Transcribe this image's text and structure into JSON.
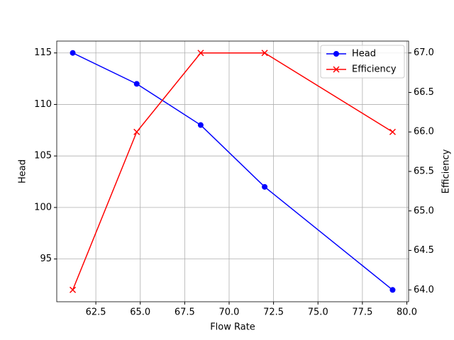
{
  "chart_data": {
    "type": "line",
    "xlabel": "Flow Rate",
    "ylabel": "Head",
    "y2label": "Efficiency",
    "x": [
      61.2,
      64.8,
      68.4,
      72.0,
      79.2
    ],
    "series": [
      {
        "name": "Head",
        "color": "#0000ff",
        "marker": "o",
        "values": [
          115,
          112,
          108,
          102,
          92
        ]
      },
      {
        "name": "Efficiency",
        "color": "#ff0000",
        "marker": "x",
        "axis": "y2",
        "values": [
          64,
          66,
          67,
          67,
          66
        ]
      }
    ],
    "xlim": [
      60.3,
      80.1
    ],
    "xticks": [
      {
        "value": 62.5,
        "label": "62.5"
      },
      {
        "value": 65,
        "label": "65.0"
      },
      {
        "value": 67.5,
        "label": "67.5"
      },
      {
        "value": 70,
        "label": "70.0"
      },
      {
        "value": 72.5,
        "label": "72.5"
      },
      {
        "value": 75,
        "label": "75.0"
      },
      {
        "value": 77.5,
        "label": "77.5"
      },
      {
        "value": 80,
        "label": "80.0"
      }
    ],
    "ylim": [
      90.85,
      116.15
    ],
    "yticks": [
      95,
      100,
      105,
      110,
      115
    ],
    "y2lim": [
      63.85,
      67.15
    ],
    "y2ticks": [
      {
        "value": 64,
        "label": "64.0"
      },
      {
        "value": 64.5,
        "label": "64.5"
      },
      {
        "value": 65,
        "label": "65.0"
      },
      {
        "value": 65.5,
        "label": "65.5"
      },
      {
        "value": 66,
        "label": "66.0"
      },
      {
        "value": 66.5,
        "label": "66.5"
      },
      {
        "value": 67,
        "label": "67.0"
      }
    ],
    "grid": true,
    "legend": "upper right"
  }
}
